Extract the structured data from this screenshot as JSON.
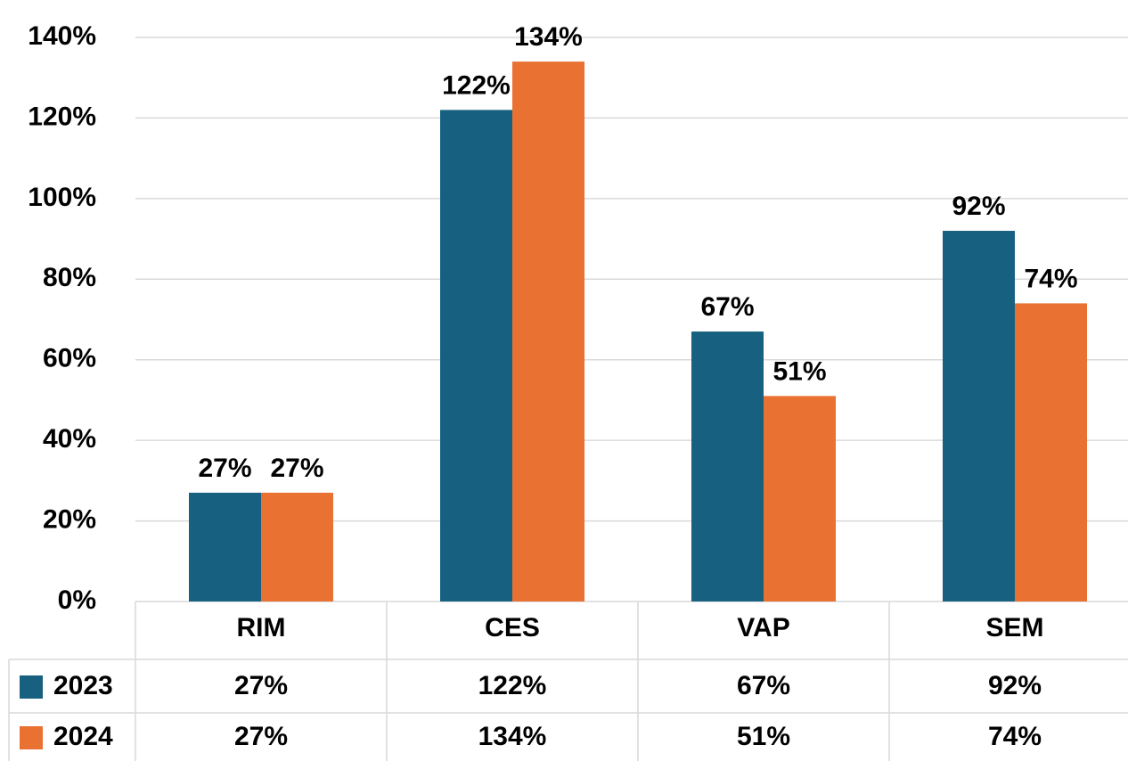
{
  "chart_data": {
    "type": "bar",
    "categories": [
      "RIM",
      "CES",
      "VAP",
      "SEM"
    ],
    "series": [
      {
        "name": "2023",
        "color": "#17607f",
        "values": [
          27,
          122,
          67,
          92
        ],
        "value_labels": [
          "27%",
          "122%",
          "67%",
          "92%"
        ]
      },
      {
        "name": "2024",
        "color": "#e97132",
        "values": [
          27,
          134,
          51,
          74
        ],
        "value_labels": [
          "27%",
          "134%",
          "51%",
          "74%"
        ]
      }
    ],
    "ylim": [
      0,
      140
    ],
    "yticks": [
      {
        "value": 0,
        "label": "0%"
      },
      {
        "value": 20,
        "label": "20%"
      },
      {
        "value": 40,
        "label": "40%"
      },
      {
        "value": 60,
        "label": "60%"
      },
      {
        "value": 80,
        "label": "80%"
      },
      {
        "value": 100,
        "label": "100%"
      },
      {
        "value": 120,
        "label": "120%"
      },
      {
        "value": 140,
        "label": "140%"
      }
    ],
    "grid": true,
    "data_table": true
  }
}
